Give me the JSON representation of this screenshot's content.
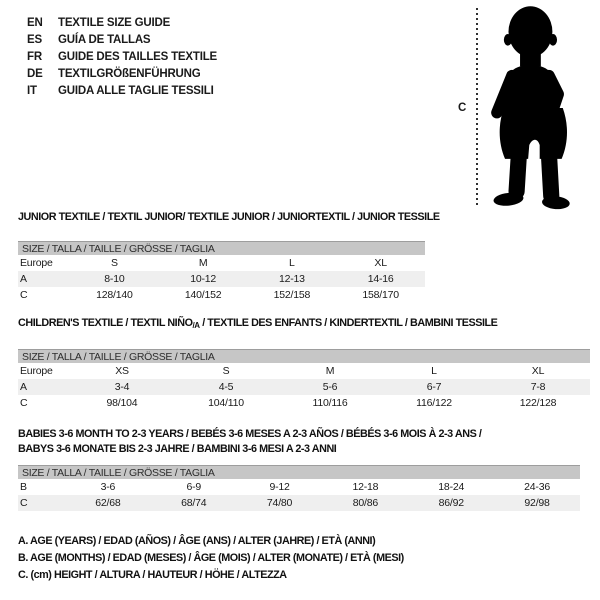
{
  "languages": {
    "items": [
      {
        "code": "EN",
        "label": "TEXTILE SIZE GUIDE"
      },
      {
        "code": "ES",
        "label": "GUÍA DE TALLAS"
      },
      {
        "code": "FR",
        "label": "GUIDE DES TAILLES TEXTILE"
      },
      {
        "code": "DE",
        "label": "TEXTILGRÖßENFÜHRUNG"
      },
      {
        "code": "IT",
        "label": "GUIDA ALLE TAGLIE TESSILI"
      }
    ]
  },
  "figure": {
    "measure_label": "C"
  },
  "tables": {
    "junior": {
      "title": "JUNIOR TEXTILE / TEXTIL JUNIOR/ TEXTILE JUNIOR / JUNIORTEXTIL / JUNIOR TESSILE",
      "header": "SIZE / TALLA / TAILLE / GRÖSSE / TAGLIA",
      "rows": [
        {
          "label": "Europe",
          "values": [
            "S",
            "M",
            "L",
            "XL"
          ],
          "shaded": false
        },
        {
          "label": "A",
          "values": [
            "8-10",
            "10-12",
            "12-13",
            "14-16"
          ],
          "shaded": true
        },
        {
          "label": "C",
          "values": [
            "128/140",
            "140/152",
            "152/158",
            "158/170"
          ],
          "shaded": false
        }
      ]
    },
    "children": {
      "title_pre": "CHILDREN'S TEXTILE / TEXTIL NIÑO",
      "title_sub": "/A",
      "title_post": " / TEXTILE DES ENFANTS / KINDERTEXTIL / BAMBINI TESSILE",
      "header": "SIZE / TALLA / TAILLE / GRÖSSE / TAGLIA",
      "rows": [
        {
          "label": "Europe",
          "values": [
            "XS",
            "S",
            "M",
            "L",
            "XL"
          ],
          "shaded": false
        },
        {
          "label": "A",
          "values": [
            "3-4",
            "4-5",
            "5-6",
            "6-7",
            "7-8"
          ],
          "shaded": true
        },
        {
          "label": "C",
          "values": [
            "98/104",
            "104/110",
            "110/116",
            "116/122",
            "122/128"
          ],
          "shaded": false
        }
      ]
    },
    "babies": {
      "title_line1": "BABIES 3-6 MONTH TO 2-3 YEARS / BEBÉS 3-6 MESES A 2-3 AÑOS / BÉBÉS 3-6 MOIS À 2-3 ANS /",
      "title_line2": "BABYS 3-6 MONATE BIS 2-3 JAHRE / BAMBINI 3-6 MESI A 2-3 ANNI",
      "header": "SIZE / TALLA / TAILLE / GRÖSSE / TAGLIA",
      "rows": [
        {
          "label": "B",
          "values": [
            "3-6",
            "6-9",
            "9-12",
            "12-18",
            "18-24",
            "24-36"
          ],
          "shaded": false
        },
        {
          "label": "C",
          "values": [
            "62/68",
            "68/74",
            "74/80",
            "80/86",
            "86/92",
            "92/98"
          ],
          "shaded": true
        }
      ]
    }
  },
  "notes": {
    "lines": [
      "A. AGE (YEARS) / EDAD (AÑOS) / ÂGE (ANS) / ALTER (JAHRE) / ETÀ (ANNI)",
      "B. AGE (MONTHS) / EDAD (MESES) / ÂGE (MOIS) / ALTER (MONATE) / ETÀ (MESI)",
      "C. (cm) HEIGHT / ALTURA / HAUTEUR / HÖHE / ALTEZZA"
    ]
  },
  "colors": {
    "header_bar": "#c6c6c6",
    "shaded_row": "#efefef",
    "text": "#1a1a1a",
    "silhouette": "#000000"
  }
}
